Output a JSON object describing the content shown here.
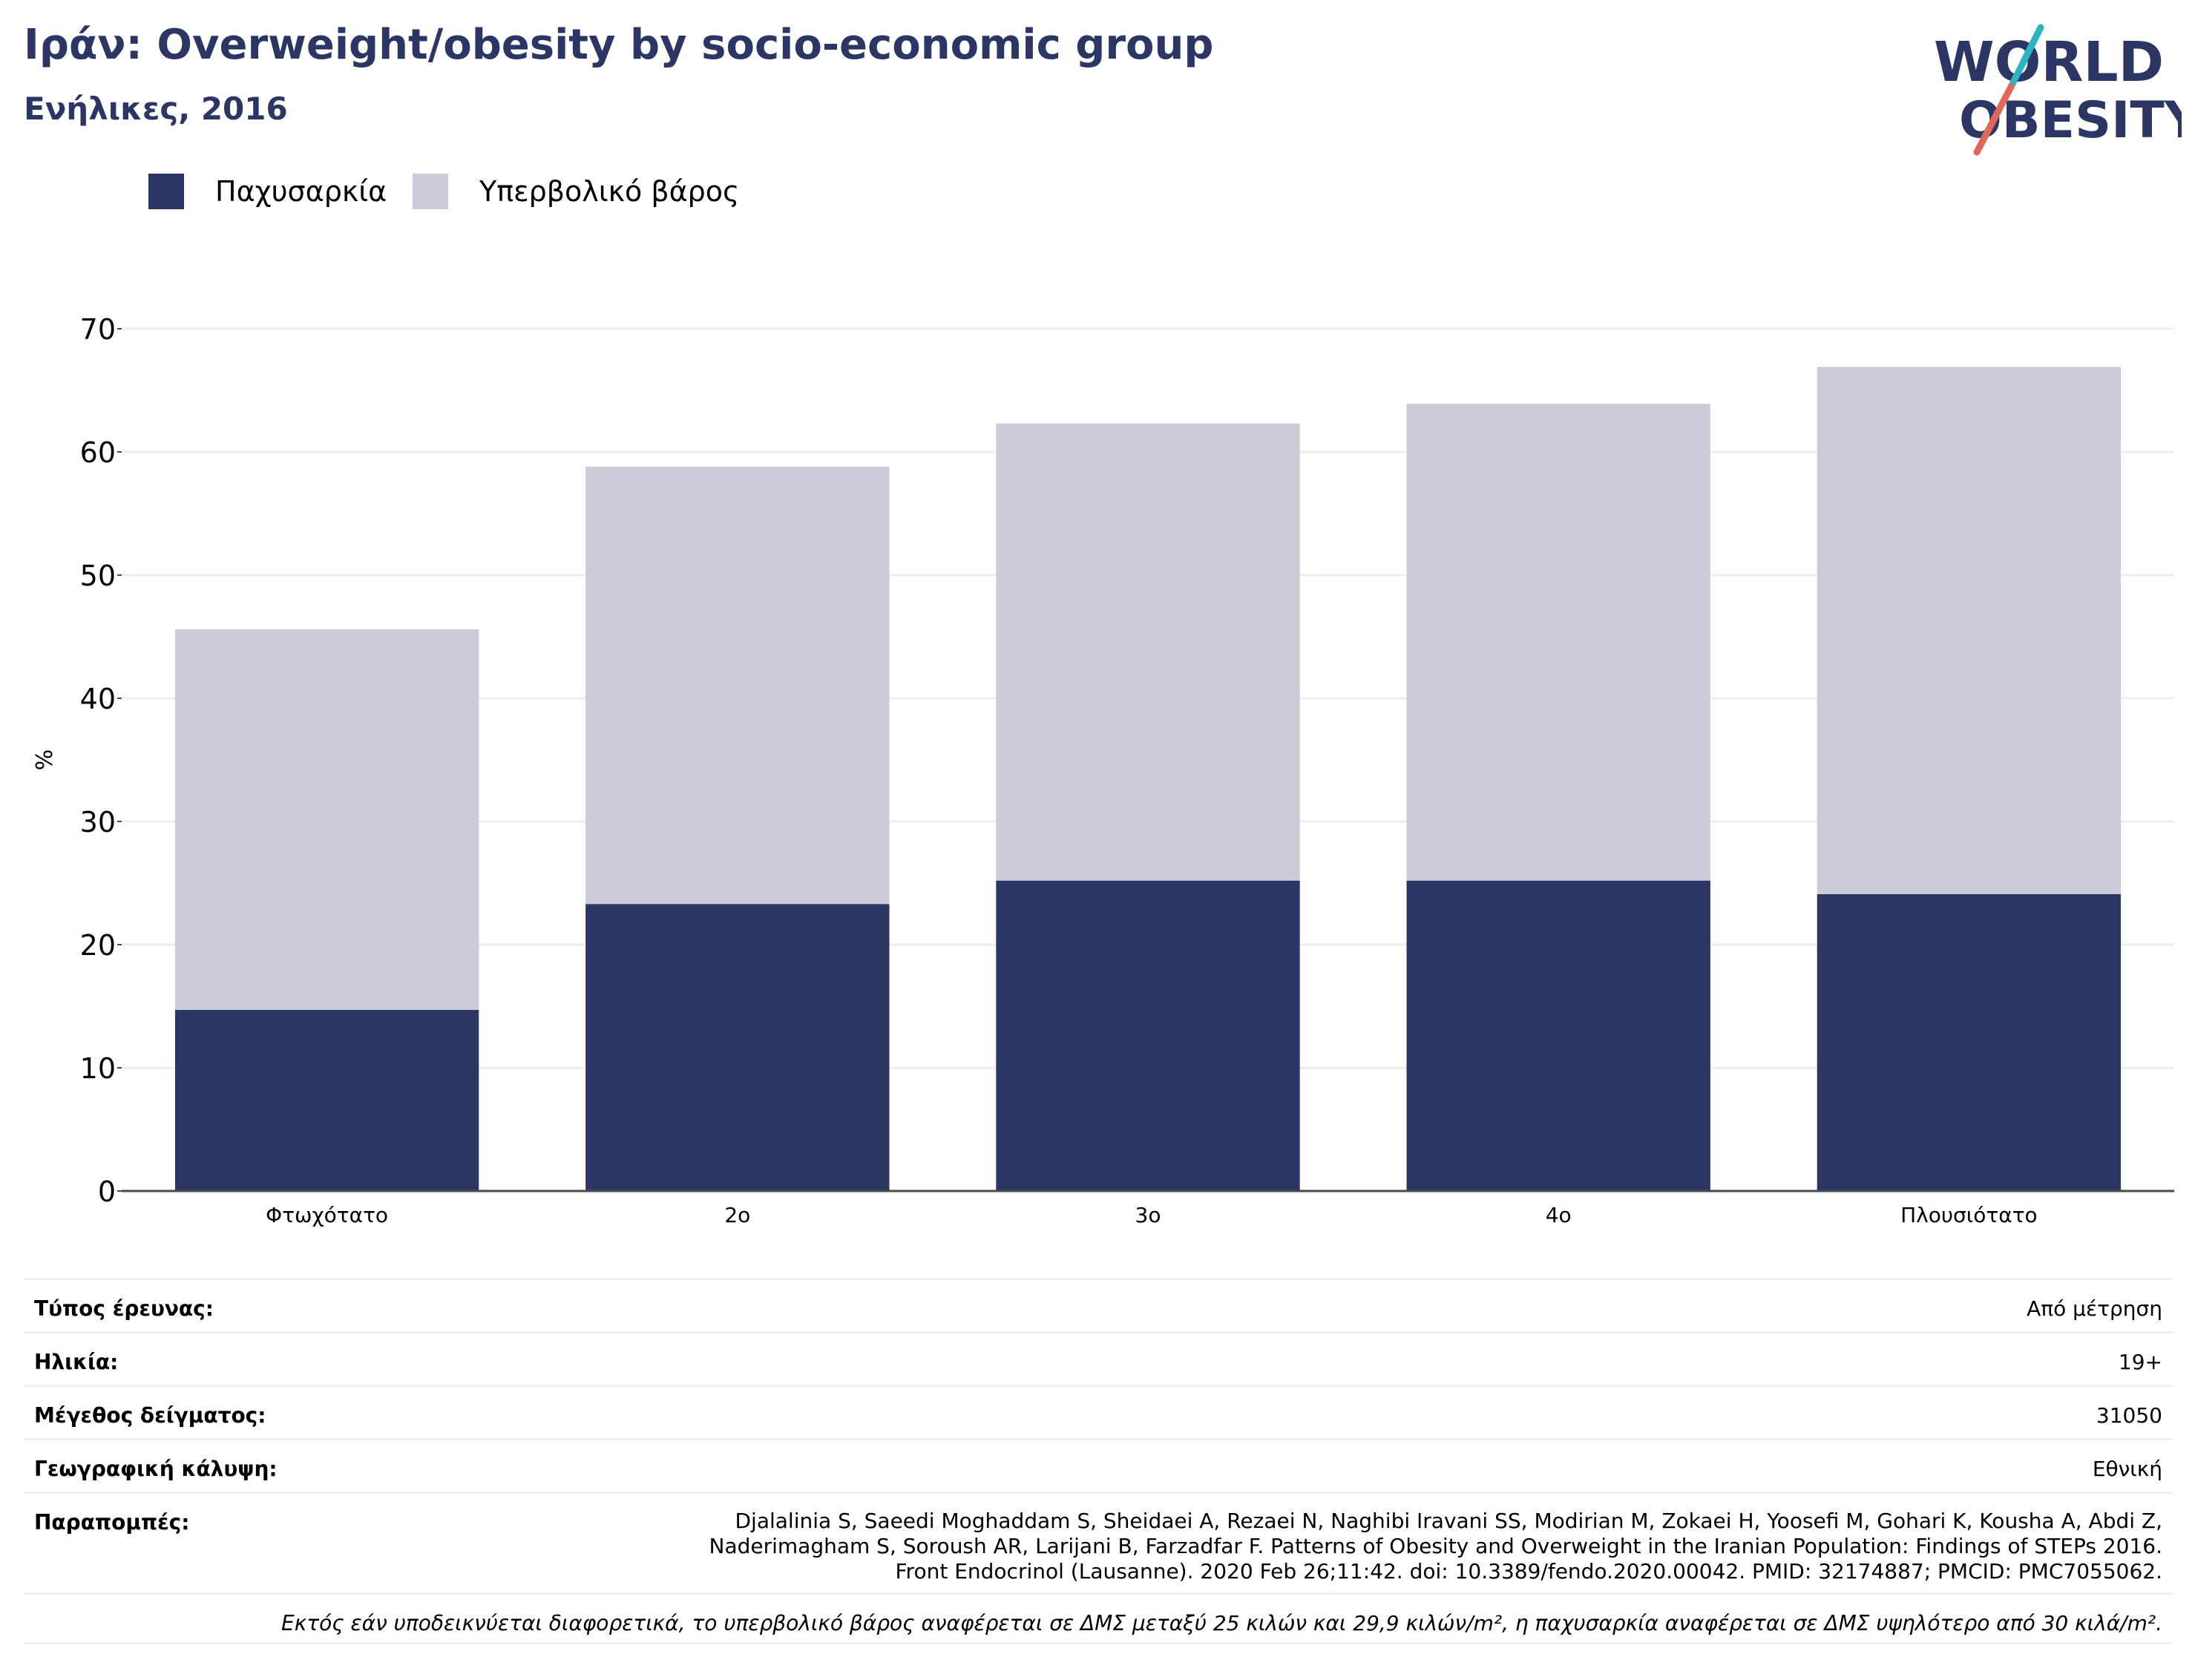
{
  "header": {
    "title": "Ιράν: Overweight/obesity by socio-economic group",
    "subtitle": "Ενήλικες, 2016"
  },
  "logo": {
    "line1": "WORLD",
    "line2": "OBESITY",
    "colors": {
      "text": "#2b3665",
      "slash_top": "#2bb5c1",
      "slash_bottom": "#e0695a"
    }
  },
  "legend": [
    {
      "label": "Παχυσαρκία",
      "color": "#2b3665"
    },
    {
      "label": "Υπερβολικό βάρος",
      "color": "#cbccd8"
    }
  ],
  "chart_data": {
    "type": "bar",
    "stacked": true,
    "title": "Ιράν: Overweight/obesity by socio-economic group",
    "subtitle": "Ενήλικες, 2016",
    "xlabel": "",
    "ylabel": "%",
    "ylim": [
      0,
      70
    ],
    "yticks": [
      0,
      10,
      20,
      30,
      40,
      50,
      60,
      70
    ],
    "grid": true,
    "legend_position": "top-left",
    "categories": [
      "Φτωχότατο",
      "2ο",
      "3ο",
      "4ο",
      "Πλουσιότατο"
    ],
    "series": [
      {
        "name": "Παχυσαρκία",
        "color": "#2b3665",
        "values": [
          14.7,
          23.3,
          25.2,
          25.2,
          24.1
        ]
      },
      {
        "name": "Υπερβολικό βάρος",
        "color": "#cbccd8",
        "values": [
          30.9,
          35.5,
          37.1,
          38.7,
          42.8
        ]
      }
    ]
  },
  "meta": {
    "rows": [
      {
        "key": "Τύπος έρευνας:",
        "value": "Από μέτρηση"
      },
      {
        "key": "Ηλικία:",
        "value": "19+"
      },
      {
        "key": "Μέγεθος δείγματος:",
        "value": "31050"
      },
      {
        "key": "Γεωγραφική κάλυψη:",
        "value": "Εθνική"
      }
    ],
    "refs_key": "Παραπομπές:",
    "refs_lines": [
      "Djalalinia S, Saeedi Moghaddam S, Sheidaei A, Rezaei N, Naghibi Iravani SS, Modirian M, Zokaei H, Yoosefi M, Gohari K, Kousha A, Abdi Z,",
      "Naderimagham S, Soroush AR, Larijani B, Farzadfar F. Patterns of Obesity and Overweight in the Iranian Population: Findings of STEPs 2016.",
      "Front Endocrinol (Lausanne). 2020 Feb 26;11:42. doi: 10.3389/fendo.2020.00042. PMID: 32174887; PMCID: PMC7055062."
    ],
    "note": "Εκτός εάν υποδεικνύεται διαφορετικά, το υπερβολικό βάρος αναφέρεται σε ΔΜΣ μεταξύ 25 κιλών και 29,9 κιλών/m², η παχυσαρκία αναφέρεται σε ΔΜΣ υψηλότερο από 30 κιλά/m²."
  }
}
